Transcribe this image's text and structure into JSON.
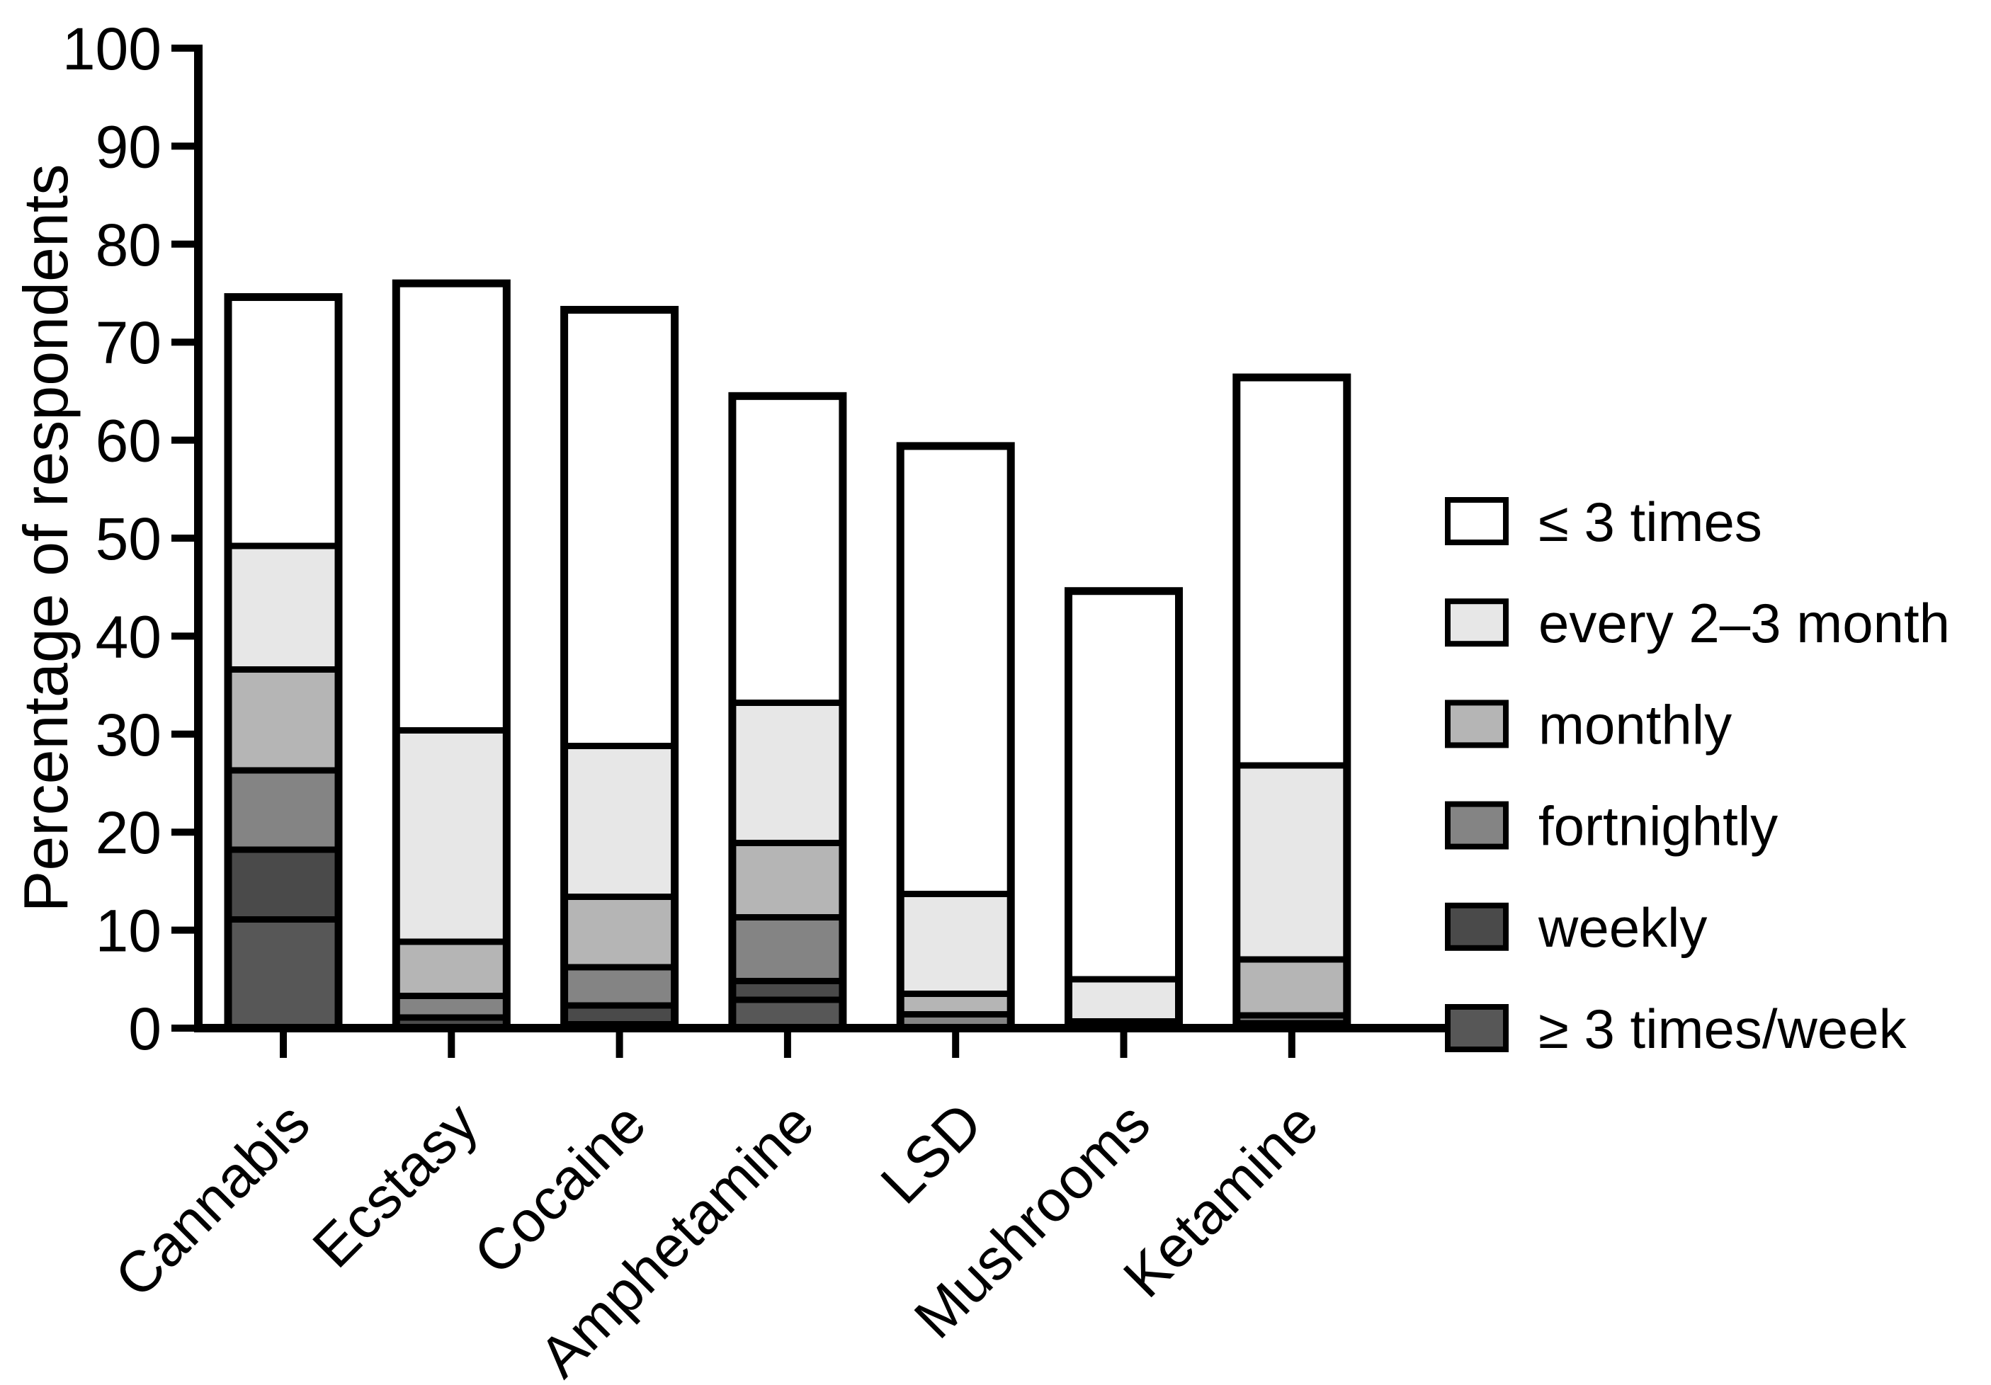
{
  "figure": {
    "background": "#ffffff",
    "outline_color": "#000000"
  },
  "y_axis": {
    "label": "Percentage of respondents",
    "ticks": [
      0,
      10,
      20,
      30,
      40,
      50,
      60,
      70,
      80,
      90,
      100
    ],
    "range": [
      0,
      100
    ]
  },
  "legend": {
    "position": "right",
    "items": [
      {
        "label": "≤ 3 times",
        "color": "#ffffff"
      },
      {
        "label": "every 2–3 month",
        "color": "#e7e7e7"
      },
      {
        "label": "monthly",
        "color": "#b5b5b5"
      },
      {
        "label": "fortnightly",
        "color": "#848484"
      },
      {
        "label": "weekly",
        "color": "#4a4a4a"
      },
      {
        "label": "≥ 3 times/week",
        "color": "#575757"
      }
    ]
  },
  "chart_data": {
    "type": "bar",
    "stacked": true,
    "stack_order": "bottom-to-top",
    "title": "",
    "xlabel": "",
    "ylabel": "Percentage of respondents",
    "ylim": [
      0,
      100
    ],
    "yticks": [
      0,
      10,
      20,
      30,
      40,
      50,
      60,
      70,
      80,
      90,
      100
    ],
    "grid": false,
    "legend_position": "right",
    "categories": [
      "Cannabis",
      "Ecstasy",
      "Cocaine",
      "Amphetamine",
      "LSD",
      "Mushrooms",
      "Ketamine"
    ],
    "series": [
      {
        "name": "≥ 3 times/week",
        "color": "#575757",
        "values": [
          11.1,
          0,
          0.4,
          2.9,
          0,
          0,
          0
        ]
      },
      {
        "name": "weekly",
        "color": "#4a4a4a",
        "values": [
          7.1,
          1.1,
          1.9,
          1.9,
          0,
          0,
          0.5
        ]
      },
      {
        "name": "fortnightly",
        "color": "#848484",
        "values": [
          8.1,
          2.2,
          3.9,
          6.5,
          1.4,
          0,
          0.8
        ]
      },
      {
        "name": "monthly",
        "color": "#b5b5b5",
        "values": [
          10.3,
          5.5,
          7.2,
          7.6,
          2.1,
          0.7,
          5.7
        ]
      },
      {
        "name": "every 2–3 month",
        "color": "#e7e7e7",
        "values": [
          12.6,
          21.6,
          15.4,
          14.3,
          10.2,
          4.3,
          19.8
        ]
      },
      {
        "name": "≤ 3 times",
        "color": "#ffffff",
        "values": [
          25.4,
          45.6,
          44.5,
          31.3,
          45.7,
          39.6,
          39.6
        ]
      }
    ],
    "bar_totals": [
      74.6,
      76.0,
      73.3,
      64.5,
      59.4,
      44.6,
      66.4
    ]
  }
}
